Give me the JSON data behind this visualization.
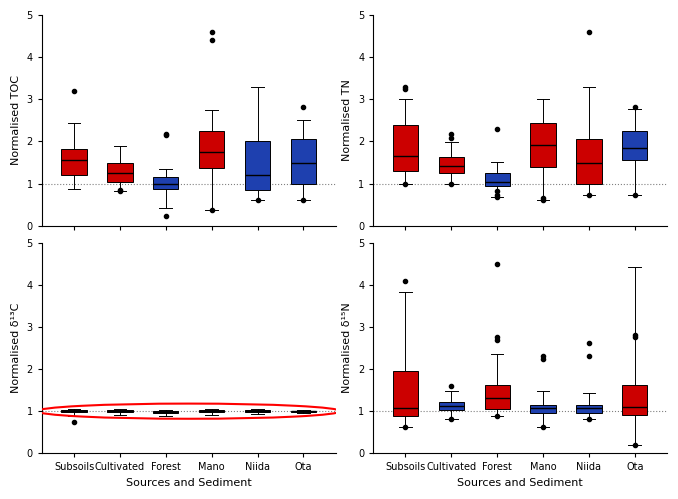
{
  "categories": [
    "Subsoils",
    "Cultivated",
    "Forest",
    "Mano",
    "Niida",
    "Ota"
  ],
  "xlabel": "Sources and Sediment",
  "ylim": [
    0,
    5
  ],
  "yticks": [
    0,
    1,
    2,
    3,
    4,
    5
  ],
  "hline_y": 1.0,
  "panels": [
    {
      "ylabel": "Normalised TOC",
      "colors": [
        "#cc0000",
        "#cc0000",
        "#1e40af",
        "#cc0000",
        "#1e40af",
        "#1e40af"
      ],
      "box_stats": [
        {
          "med": 1.55,
          "q1": 1.2,
          "q3": 1.82,
          "whislo": 0.88,
          "whishi": 2.45,
          "fliers": [
            3.2
          ]
        },
        {
          "med": 1.25,
          "q1": 1.05,
          "q3": 1.48,
          "whislo": 0.82,
          "whishi": 1.9,
          "fliers": [
            0.82,
            0.85
          ]
        },
        {
          "med": 0.98,
          "q1": 0.88,
          "q3": 1.15,
          "whislo": 0.42,
          "whishi": 1.35,
          "fliers": [
            2.18,
            2.15,
            0.22
          ]
        },
        {
          "med": 1.75,
          "q1": 1.38,
          "q3": 2.25,
          "whislo": 0.38,
          "whishi": 2.75,
          "fliers": [
            4.4,
            4.6,
            0.38
          ]
        },
        {
          "med": 1.2,
          "q1": 0.85,
          "q3": 2.02,
          "whislo": 0.62,
          "whishi": 3.3,
          "fliers": [
            0.62
          ]
        },
        {
          "med": 1.48,
          "q1": 0.98,
          "q3": 2.05,
          "whislo": 0.62,
          "whishi": 2.5,
          "fliers": [
            2.82,
            0.62
          ]
        }
      ]
    },
    {
      "ylabel": "Normalised TN",
      "colors": [
        "#cc0000",
        "#cc0000",
        "#1e40af",
        "#cc0000",
        "#cc0000",
        "#1e40af"
      ],
      "box_stats": [
        {
          "med": 1.65,
          "q1": 1.3,
          "q3": 2.4,
          "whislo": 1.0,
          "whishi": 3.0,
          "fliers": [
            3.25,
            3.3,
            1.0
          ]
        },
        {
          "med": 1.42,
          "q1": 1.25,
          "q3": 1.62,
          "whislo": 1.0,
          "whishi": 1.98,
          "fliers": [
            2.08,
            2.18,
            1.0
          ]
        },
        {
          "med": 1.05,
          "q1": 0.95,
          "q3": 1.25,
          "whislo": 0.68,
          "whishi": 1.52,
          "fliers": [
            0.68,
            0.72,
            0.82,
            2.3
          ]
        },
        {
          "med": 1.92,
          "q1": 1.4,
          "q3": 2.45,
          "whislo": 0.62,
          "whishi": 3.0,
          "fliers": [
            0.62,
            0.65
          ]
        },
        {
          "med": 1.5,
          "q1": 1.0,
          "q3": 2.05,
          "whislo": 0.72,
          "whishi": 3.3,
          "fliers": [
            0.72,
            4.6
          ]
        },
        {
          "med": 1.85,
          "q1": 1.55,
          "q3": 2.25,
          "whislo": 0.72,
          "whishi": 2.78,
          "fliers": [
            0.72,
            2.82
          ]
        }
      ]
    },
    {
      "ylabel": "Normalised δ¹³C",
      "colors": [
        "#cc0000",
        "#cc0000",
        "#1e40af",
        "#cc0000",
        "#1e40af",
        "#1e40af"
      ],
      "box_stats": [
        {
          "med": 1.0,
          "q1": 0.97,
          "q3": 1.02,
          "whislo": 0.88,
          "whishi": 1.05,
          "fliers": [
            0.75
          ]
        },
        {
          "med": 1.0,
          "q1": 0.97,
          "q3": 1.02,
          "whislo": 0.9,
          "whishi": 1.05,
          "fliers": []
        },
        {
          "med": 0.97,
          "q1": 0.95,
          "q3": 1.0,
          "whislo": 0.88,
          "whishi": 1.02,
          "fliers": []
        },
        {
          "med": 1.0,
          "q1": 0.98,
          "q3": 1.02,
          "whislo": 0.92,
          "whishi": 1.05,
          "fliers": []
        },
        {
          "med": 1.0,
          "q1": 0.98,
          "q3": 1.02,
          "whislo": 0.93,
          "whishi": 1.05,
          "fliers": []
        },
        {
          "med": 1.0,
          "q1": 0.99,
          "q3": 1.01,
          "whislo": 0.95,
          "whishi": 1.02,
          "fliers": []
        }
      ],
      "ellipse": true
    },
    {
      "ylabel": "Normalised δ¹⁵N",
      "colors": [
        "#cc0000",
        "#1e40af",
        "#cc0000",
        "#1e40af",
        "#1e40af",
        "#cc0000"
      ],
      "box_stats": [
        {
          "med": 1.08,
          "q1": 0.88,
          "q3": 1.95,
          "whislo": 0.62,
          "whishi": 3.82,
          "fliers": [
            4.08,
            0.62
          ]
        },
        {
          "med": 1.12,
          "q1": 1.02,
          "q3": 1.22,
          "whislo": 0.82,
          "whishi": 1.48,
          "fliers": [
            0.82,
            1.6
          ]
        },
        {
          "med": 1.32,
          "q1": 1.05,
          "q3": 1.62,
          "whislo": 0.88,
          "whishi": 2.35,
          "fliers": [
            0.88,
            2.68,
            2.75,
            4.5
          ]
        },
        {
          "med": 1.08,
          "q1": 0.95,
          "q3": 1.15,
          "whislo": 0.62,
          "whishi": 1.48,
          "fliers": [
            0.62,
            2.25,
            2.32
          ]
        },
        {
          "med": 1.08,
          "q1": 0.95,
          "q3": 1.15,
          "whislo": 0.82,
          "whishi": 1.42,
          "fliers": [
            2.32,
            2.62,
            0.82
          ]
        },
        {
          "med": 1.1,
          "q1": 0.92,
          "q3": 1.62,
          "whislo": 0.2,
          "whishi": 4.42,
          "fliers": [
            2.82,
            2.75,
            0.2
          ]
        }
      ]
    }
  ]
}
